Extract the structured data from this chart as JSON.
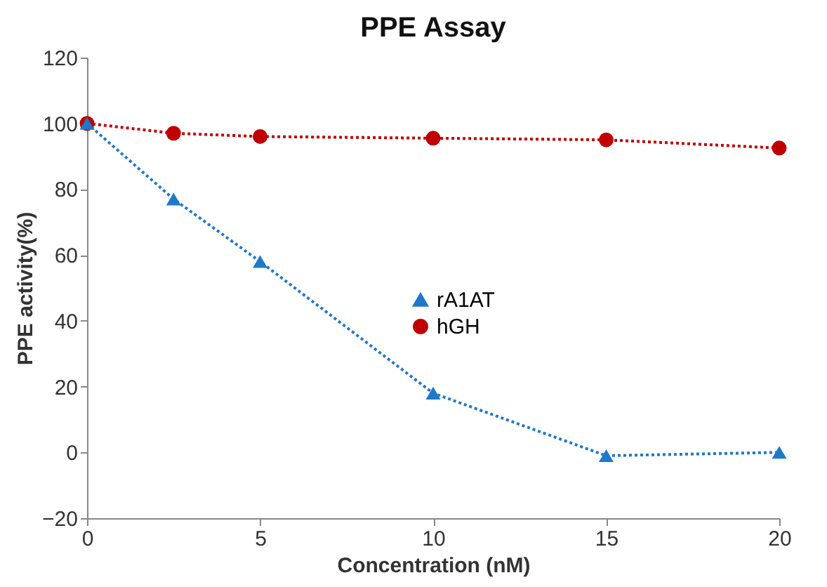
{
  "chart_data": {
    "type": "line",
    "title": "PPE Assay",
    "xlabel": "Concentration (nM)",
    "ylabel": "PPE  activity(%)",
    "x": [
      0,
      2.5,
      5,
      10,
      15,
      20
    ],
    "series": [
      {
        "name": "rA1AT",
        "color": "#1f78c8",
        "marker": "triangle",
        "values": [
          100,
          77,
          58,
          18,
          -1,
          0
        ]
      },
      {
        "name": "hGH",
        "color": "#c00000",
        "marker": "circle",
        "values": [
          100,
          97,
          96,
          95.5,
          95,
          92.5
        ]
      }
    ],
    "xlim": [
      0,
      20
    ],
    "xticks": [
      0,
      5,
      10,
      15,
      20
    ],
    "ylim": [
      -20,
      120
    ],
    "yticks": [
      -20,
      0,
      20,
      40,
      60,
      80,
      100,
      120
    ],
    "line_style": "dotted",
    "grid": false,
    "legend": "right"
  }
}
